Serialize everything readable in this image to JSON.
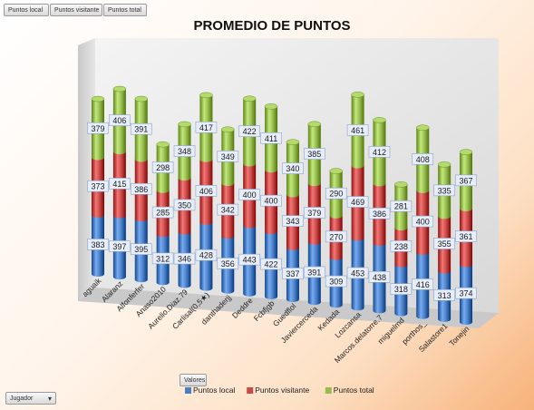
{
  "pivot": {
    "filter_buttons": [
      "Puntos local",
      "Puntos visitante",
      "Puntos total"
    ],
    "values_button": "Valores",
    "row_field_button": "Jugador"
  },
  "chart_data": {
    "type": "bar",
    "stacked": true,
    "style": "3d-cylinder",
    "title": "PROMEDIO DE PUNTOS",
    "categories": [
      "aguaik",
      "Alaranz",
      "Alfonferfer",
      "Anaso2010",
      "Aurelio.Diaz.79",
      "Carlisal(0,5★)",
      "danthaderjj",
      "Deddre",
      "Fcbfjgb",
      "Guedflol",
      "Javiercerceda",
      "Kedada",
      "Lozcansa",
      "Marcos.delatorre.7",
      "miguelmd",
      "porthos_",
      "Salastore1",
      "Tonejin"
    ],
    "series": [
      {
        "name": "Puntos local",
        "color": "#4a7fc6",
        "values": [
          383,
          397,
          395,
          312,
          346,
          428,
          356,
          443,
          422,
          337,
          391,
          309,
          453,
          438,
          318,
          416,
          313,
          374
        ]
      },
      {
        "name": "Puntos visitante",
        "color": "#c84a48",
        "values": [
          373,
          415,
          386,
          285,
          350,
          406,
          342,
          400,
          400,
          343,
          379,
          270,
          469,
          386,
          238,
          400,
          355,
          361
        ]
      },
      {
        "name": "Puntos total",
        "color": "#96bb4f",
        "values": [
          379,
          406,
          391,
          298,
          348,
          417,
          349,
          422,
          411,
          340,
          385,
          290,
          461,
          412,
          281,
          408,
          335,
          367
        ]
      }
    ],
    "legend_position": "bottom",
    "grid": false
  }
}
